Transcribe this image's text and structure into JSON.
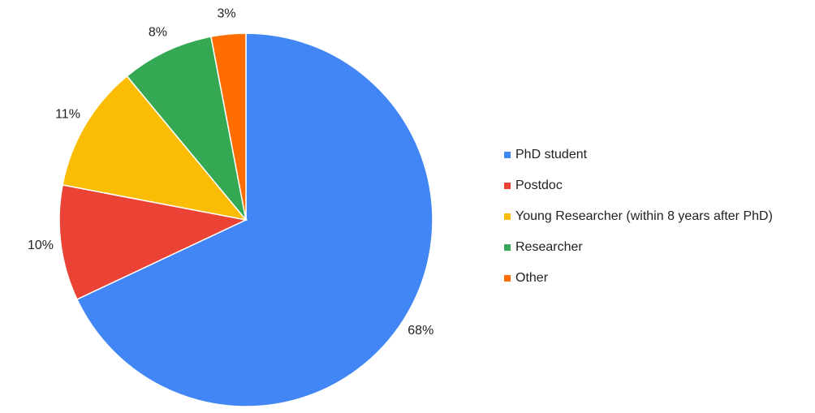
{
  "chart_data": {
    "type": "pie",
    "categories": [
      "PhD student",
      "Postdoc",
      "Young Researcher (within 8 years after PhD)",
      "Researcher",
      "Other"
    ],
    "values": [
      68,
      10,
      11,
      8,
      3
    ],
    "value_labels": [
      "68%",
      "10%",
      "11%",
      "8%",
      "3%"
    ],
    "colors": [
      "#4285f4",
      "#ea4335",
      "#fbbc04",
      "#34a853",
      "#ff6d01"
    ],
    "legend": "right"
  }
}
